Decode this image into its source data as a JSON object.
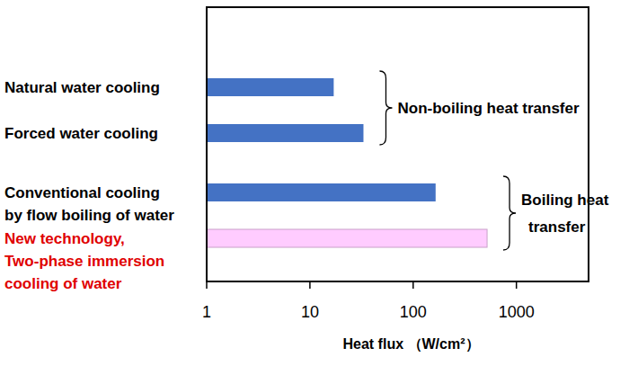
{
  "chart_data": {
    "type": "bar",
    "orientation": "horizontal",
    "log": "x",
    "grid": false,
    "categories": [
      "Natural water cooling",
      "Forced water cooling",
      "Conventional cooling\nby flow boiling of water",
      "New technology,\nTwo-phase immersion\ncooling of water"
    ],
    "values": [
      17,
      33,
      165,
      520
    ],
    "colors": [
      "#4472c4",
      "#4472c4",
      "#4472c4",
      "#ffccff"
    ],
    "xlim": [
      1,
      5000
    ],
    "xticks": [
      1,
      10,
      100,
      1000
    ],
    "xlabel": "Heat flux （W/cm²）",
    "annotations": [
      {
        "lines": [
          "Non-boiling heat transfer"
        ],
        "from": 0,
        "to": 1
      },
      {
        "lines": [
          "Boiling heat",
          "transfer"
        ],
        "from": 2,
        "to": 3
      }
    ]
  }
}
